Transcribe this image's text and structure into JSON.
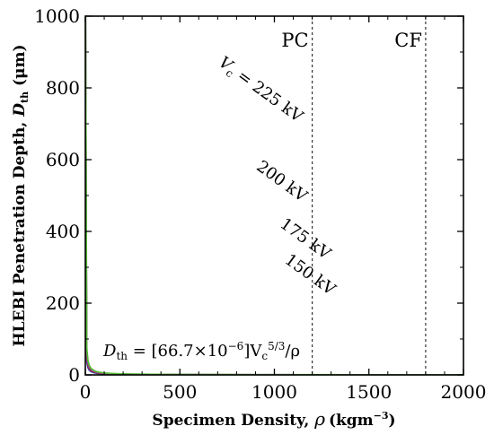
{
  "chart_data": {
    "type": "line",
    "xlabel_prefix": "Specimen Density, ",
    "xlabel_symbol": "ρ",
    "xlabel_units": "(kgm",
    "xlabel_exp": "−3",
    "xlabel_close": ")",
    "ylabel_main": "HLEBI Penetration Depth, ",
    "ylabel_sym": "D",
    "ylabel_sub": "th",
    "ylabel_units": " (μm)",
    "xlim": [
      0,
      2000
    ],
    "ylim": [
      0,
      1000
    ],
    "x_ticks": [
      0,
      500,
      1000,
      1500,
      2000
    ],
    "y_ticks": [
      0,
      200,
      400,
      600,
      800,
      1000
    ],
    "x_tick_labels": [
      "0",
      "500",
      "1000",
      "1500",
      "2000"
    ],
    "y_tick_labels": [
      "0",
      "200",
      "400",
      "600",
      "800",
      "1000"
    ],
    "formula": {
      "lhs": "D",
      "lhs_sub": "th",
      "mid": " = [66.7×10",
      "exp1": "−6",
      "v": "]V",
      "v_sub": "c",
      "exp2": "5/3",
      "tail": "/ρ"
    },
    "reference_lines": [
      {
        "x": 1200,
        "label": "PC"
      },
      {
        "x": 1800,
        "label": "CF"
      }
    ],
    "series": [
      {
        "name": "150 kV",
        "kv": 150,
        "label": "150 kV",
        "color": "#2d3fbf",
        "label_x": 1050,
        "label_y": 315
      },
      {
        "name": "175 kV",
        "kv": 175,
        "label": "175 kV",
        "color": "#9c3422",
        "label_x": 1025,
        "label_y": 415
      },
      {
        "name": "200 kV",
        "kv": 200,
        "label": "200 kV",
        "color": "#9a2fb5",
        "label_x": 900,
        "label_y": 575
      },
      {
        "name": "225 kV",
        "kv": 225,
        "label_prefix": "V",
        "label_sub": "c",
        "label": " = 225 kV",
        "color": "#55bb33",
        "label_x": 700,
        "label_y": 865
      }
    ],
    "coefficient": 6.67e-05,
    "exponent": 1.6667,
    "grid": false,
    "legend": "none"
  }
}
